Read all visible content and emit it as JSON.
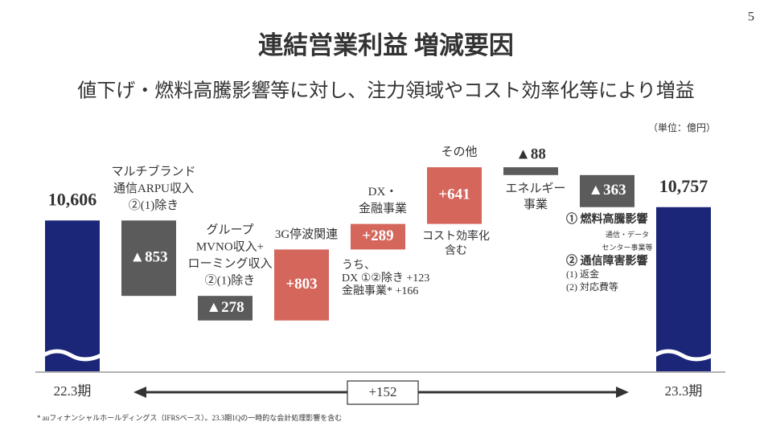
{
  "page_number": "5",
  "unit_label": "（単位：億円）",
  "footnote": "* auフィナンシャルホールディングス（IFRSベース）。23.3期1Qの一時的な会計処理影響を含む",
  "chart_data": {
    "type": "waterfall",
    "title": "連結営業利益 増減要因",
    "subtitle": "値下げ・燃料高騰影響等に対し、注力領域やコスト効率化等により増益",
    "categories": [
      [
        "22.3期"
      ],
      [
        "マルチブランド",
        "通信ARPU収入",
        "②(1)除き"
      ],
      [
        "グループ",
        "MVNO収入+",
        "ローミング収入",
        "②(1)除き"
      ],
      [
        "3G停波関連"
      ],
      [
        "DX・",
        "金融事業"
      ],
      [
        "その他"
      ],
      [
        "エネルギー",
        "事業"
      ],
      null,
      [
        "23.3期"
      ]
    ],
    "measures": [
      "total",
      "relative",
      "relative",
      "relative",
      "relative",
      "relative",
      "relative",
      "relative",
      "total"
    ],
    "values": [
      10606,
      -853,
      -278,
      803,
      289,
      641,
      -88,
      -363,
      10757
    ],
    "value_labels": [
      "10,606",
      "▲853",
      "▲278",
      "+803",
      "+289",
      "+641",
      "▲88",
      "▲363",
      "10,757"
    ],
    "colors": {
      "total": "#1c2678",
      "increase": "#d4665c",
      "decrease": "#5b5b5b"
    },
    "ylim": [
      8900,
      11500
    ],
    "change": 152,
    "change_label": "+152",
    "annotations": [
      [
        "うち、",
        "DX ①②除き +123",
        "金融事業* +166"
      ],
      [
        "コスト効率化",
        "含む"
      ],
      [
        "① 燃料高騰影響",
        "通信・データ",
        "センター事業等",
        "② 通信障害影響",
        "(1)  返金",
        "(2)  対応費等"
      ]
    ]
  }
}
